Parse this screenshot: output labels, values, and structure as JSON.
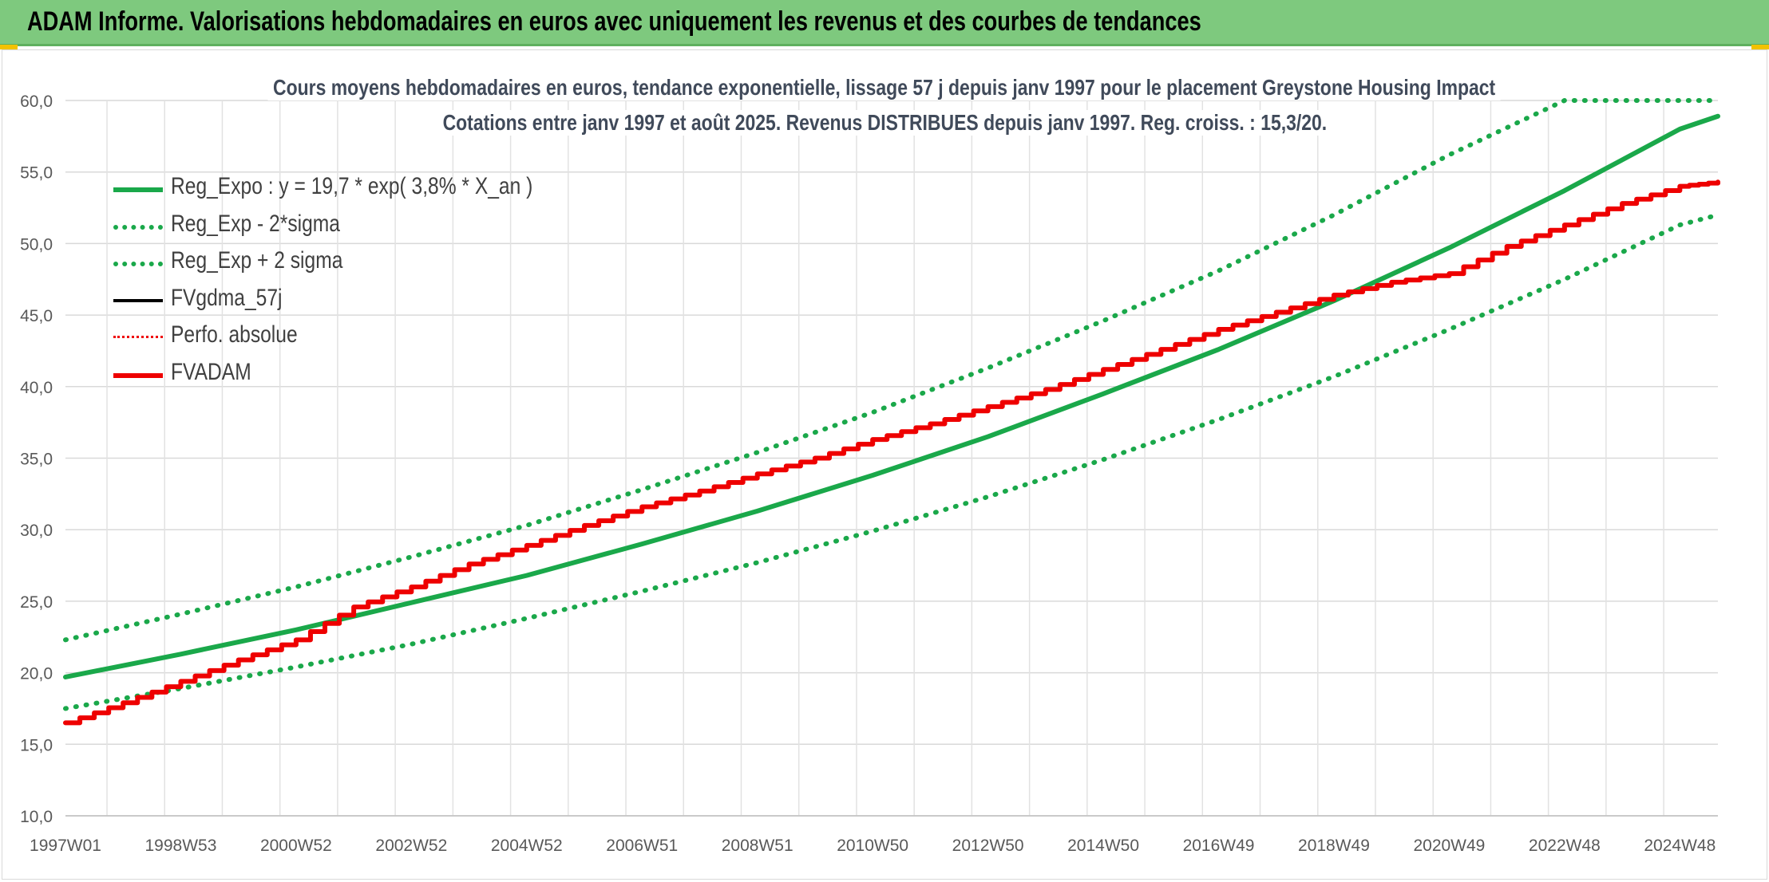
{
  "banner": {
    "title": "ADAM Informe. Valorisations hebdomadaires en euros avec uniquement les revenus et des courbes de tendances"
  },
  "chart_data": {
    "type": "line",
    "title_line1": "Cours moyens hebdomadaires en euros, tendance exponentielle, lissage 57 j depuis janv 1997 pour le placement Greystone Housing Impact",
    "title_line2": "Cotations entre janv 1997 et août 2025. Revenus DISTRIBUES depuis janv 1997. Reg. croiss. : 15,3/20.",
    "y_ticks": [
      "10,0",
      "15,0",
      "20,0",
      "25,0",
      "30,0",
      "35,0",
      "40,0",
      "45,0",
      "50,0",
      "55,0",
      "60,0"
    ],
    "ylim": [
      10,
      60
    ],
    "x_ticks": [
      {
        "label": "1997W01",
        "t": 1997.0
      },
      {
        "label": "1998W53",
        "t": 1999.0
      },
      {
        "label": "2000W52",
        "t": 2001.0
      },
      {
        "label": "2002W52",
        "t": 2003.0
      },
      {
        "label": "2004W52",
        "t": 2005.0
      },
      {
        "label": "2006W51",
        "t": 2007.0
      },
      {
        "label": "2008W51",
        "t": 2009.0
      },
      {
        "label": "2010W50",
        "t": 2011.0
      },
      {
        "label": "2012W50",
        "t": 2013.0
      },
      {
        "label": "2014W50",
        "t": 2015.0
      },
      {
        "label": "2016W49",
        "t": 2017.0
      },
      {
        "label": "2018W49",
        "t": 2019.0
      },
      {
        "label": "2020W49",
        "t": 2021.0
      },
      {
        "label": "2022W48",
        "t": 2023.0
      },
      {
        "label": "2024W48",
        "t": 2025.0
      }
    ],
    "xlim": [
      1997.0,
      2025.66
    ],
    "grid": true,
    "legend_position": "top-left",
    "series": [
      {
        "name": "Reg_Expo : y = 19,7 * exp( 3,8% *  X_an )",
        "color": "#1aa84a",
        "style": "solid",
        "x": [
          1997,
          1999,
          2001,
          2003,
          2005,
          2007,
          2009,
          2011,
          2013,
          2015,
          2017,
          2019,
          2021,
          2023,
          2025,
          2025.66
        ],
        "y": [
          19.7,
          21.3,
          23.0,
          24.9,
          26.8,
          29.0,
          31.3,
          33.8,
          36.5,
          39.5,
          42.6,
          46.0,
          49.7,
          53.7,
          58.0,
          58.9
        ]
      },
      {
        "name": "Reg_Exp - 2*sigma",
        "color": "#1aa84a",
        "style": "dotted",
        "x": [
          1997,
          1999,
          2001,
          2003,
          2005,
          2007,
          2009,
          2011,
          2013,
          2015,
          2017,
          2019,
          2021,
          2023,
          2025,
          2025.66
        ],
        "y": [
          17.5,
          18.9,
          20.4,
          22.0,
          23.8,
          25.7,
          27.7,
          29.9,
          32.3,
          34.9,
          37.7,
          40.7,
          44.0,
          47.5,
          51.3,
          52.0
        ]
      },
      {
        "name": "Reg_Exp + 2 sigma",
        "color": "#1aa84a",
        "style": "dotted",
        "x": [
          1997,
          1999,
          2001,
          2003,
          2005,
          2007,
          2009,
          2011,
          2013,
          2015,
          2017,
          2019,
          2021,
          2023,
          2025,
          2025.66
        ],
        "y": [
          22.3,
          24.1,
          26.0,
          28.1,
          30.3,
          32.8,
          35.4,
          38.2,
          41.3,
          44.6,
          48.1,
          52.0,
          56.2,
          60.0,
          60.0,
          60.0
        ]
      },
      {
        "name": "FVgdma_57j",
        "color": "#000000",
        "style": "solid",
        "x": [],
        "y": []
      },
      {
        "name": "Perfo. absolue",
        "color": "#ee0000",
        "style": "dotted",
        "x": [],
        "y": []
      },
      {
        "name": "FVADAM",
        "color": "#ee0000",
        "style": "solid",
        "x": [
          1997,
          1998,
          1999,
          2000,
          2001,
          2002,
          2003,
          2004,
          2005,
          2006,
          2007,
          2008,
          2009,
          2010,
          2011,
          2012,
          2013,
          2014,
          2015,
          2016,
          2017,
          2018,
          2019,
          2020,
          2021,
          2022,
          2023,
          2024,
          2025,
          2025.66
        ],
        "y": [
          16.5,
          17.9,
          19.4,
          20.9,
          22.3,
          24.6,
          26.0,
          27.6,
          28.9,
          30.3,
          31.6,
          32.7,
          33.9,
          35.0,
          36.3,
          37.4,
          38.6,
          39.8,
          41.2,
          42.6,
          44.0,
          45.2,
          46.4,
          47.3,
          47.9,
          49.8,
          51.3,
          52.8,
          54.0,
          54.3
        ]
      }
    ]
  }
}
